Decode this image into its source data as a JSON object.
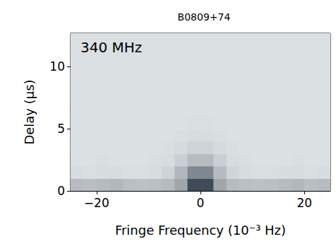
{
  "chart_data": {
    "type": "heatmap",
    "title": "B0809+74",
    "annotations": [
      "340 MHz"
    ],
    "x_label": "Fringe Frequency (10⁻³ Hz)",
    "y_label": "Delay (μs)",
    "xlim": [
      -25,
      25
    ],
    "ylim": [
      0,
      12.7
    ],
    "xticks": [
      {
        "value": -20,
        "label": "−20"
      },
      0,
      20
    ],
    "yticks": [
      0,
      5,
      10
    ],
    "grid": false,
    "x_bins": [
      -25,
      -22.5,
      -20,
      -17.5,
      -15,
      -12.5,
      -10,
      -7.5,
      -5,
      -2.5,
      0,
      2.5,
      5,
      7.5,
      10,
      12.5,
      15,
      17.5,
      20,
      22.5,
      25
    ],
    "y_bins": [
      0,
      1,
      2,
      3,
      4,
      5,
      6,
      7,
      8,
      9,
      10,
      11,
      12,
      13
    ],
    "cells": [
      [
        0.3,
        0.28,
        0.3,
        0.32,
        0.28,
        0.27,
        0.28,
        0.3,
        0.4,
        0.85,
        0.85,
        0.4,
        0.3,
        0.28,
        0.27,
        0.28,
        0.3,
        0.32,
        0.28,
        0.3
      ],
      [
        0.14,
        0.13,
        0.14,
        0.14,
        0.13,
        0.13,
        0.14,
        0.18,
        0.32,
        0.55,
        0.55,
        0.3,
        0.17,
        0.14,
        0.13,
        0.13,
        0.14,
        0.14,
        0.13,
        0.14
      ],
      [
        0.12,
        0.12,
        0.13,
        0.12,
        0.12,
        0.12,
        0.13,
        0.14,
        0.2,
        0.3,
        0.3,
        0.2,
        0.14,
        0.13,
        0.12,
        0.12,
        0.12,
        0.13,
        0.12,
        0.12
      ],
      [
        0.12,
        0.12,
        0.12,
        0.12,
        0.12,
        0.12,
        0.12,
        0.13,
        0.15,
        0.18,
        0.18,
        0.15,
        0.13,
        0.12,
        0.12,
        0.12,
        0.12,
        0.12,
        0.12,
        0.12
      ],
      [
        0.12,
        0.12,
        0.12,
        0.12,
        0.12,
        0.12,
        0.12,
        0.12,
        0.13,
        0.14,
        0.14,
        0.13,
        0.12,
        0.12,
        0.12,
        0.12,
        0.12,
        0.12,
        0.12,
        0.12
      ],
      [
        0.12,
        0.12,
        0.12,
        0.12,
        0.12,
        0.12,
        0.12,
        0.12,
        0.12,
        0.13,
        0.13,
        0.12,
        0.12,
        0.12,
        0.12,
        0.12,
        0.12,
        0.12,
        0.12,
        0.12
      ],
      [
        0.12,
        0.12,
        0.12,
        0.12,
        0.12,
        0.12,
        0.12,
        0.12,
        0.12,
        0.12,
        0.12,
        0.12,
        0.12,
        0.12,
        0.12,
        0.12,
        0.12,
        0.12,
        0.12,
        0.12
      ],
      [
        0.12,
        0.12,
        0.12,
        0.12,
        0.12,
        0.12,
        0.12,
        0.12,
        0.12,
        0.12,
        0.12,
        0.12,
        0.12,
        0.12,
        0.12,
        0.12,
        0.12,
        0.12,
        0.12,
        0.12
      ],
      [
        0.12,
        0.12,
        0.12,
        0.12,
        0.12,
        0.12,
        0.12,
        0.12,
        0.12,
        0.12,
        0.12,
        0.12,
        0.12,
        0.12,
        0.12,
        0.12,
        0.12,
        0.12,
        0.12,
        0.12
      ],
      [
        0.12,
        0.12,
        0.12,
        0.12,
        0.12,
        0.12,
        0.12,
        0.12,
        0.12,
        0.12,
        0.12,
        0.12,
        0.12,
        0.12,
        0.12,
        0.12,
        0.12,
        0.12,
        0.12,
        0.12
      ],
      [
        0.12,
        0.12,
        0.12,
        0.12,
        0.12,
        0.12,
        0.12,
        0.12,
        0.12,
        0.12,
        0.12,
        0.12,
        0.12,
        0.12,
        0.12,
        0.12,
        0.12,
        0.12,
        0.12,
        0.12
      ],
      [
        0.12,
        0.12,
        0.12,
        0.12,
        0.12,
        0.12,
        0.12,
        0.12,
        0.12,
        0.12,
        0.12,
        0.12,
        0.12,
        0.12,
        0.12,
        0.12,
        0.12,
        0.12,
        0.12,
        0.12
      ],
      [
        0.12,
        0.12,
        0.12,
        0.12,
        0.12,
        0.12,
        0.12,
        0.12,
        0.12,
        0.12,
        0.12,
        0.12,
        0.12,
        0.12,
        0.12,
        0.12,
        0.12,
        0.12,
        0.12,
        0.12
      ]
    ]
  }
}
